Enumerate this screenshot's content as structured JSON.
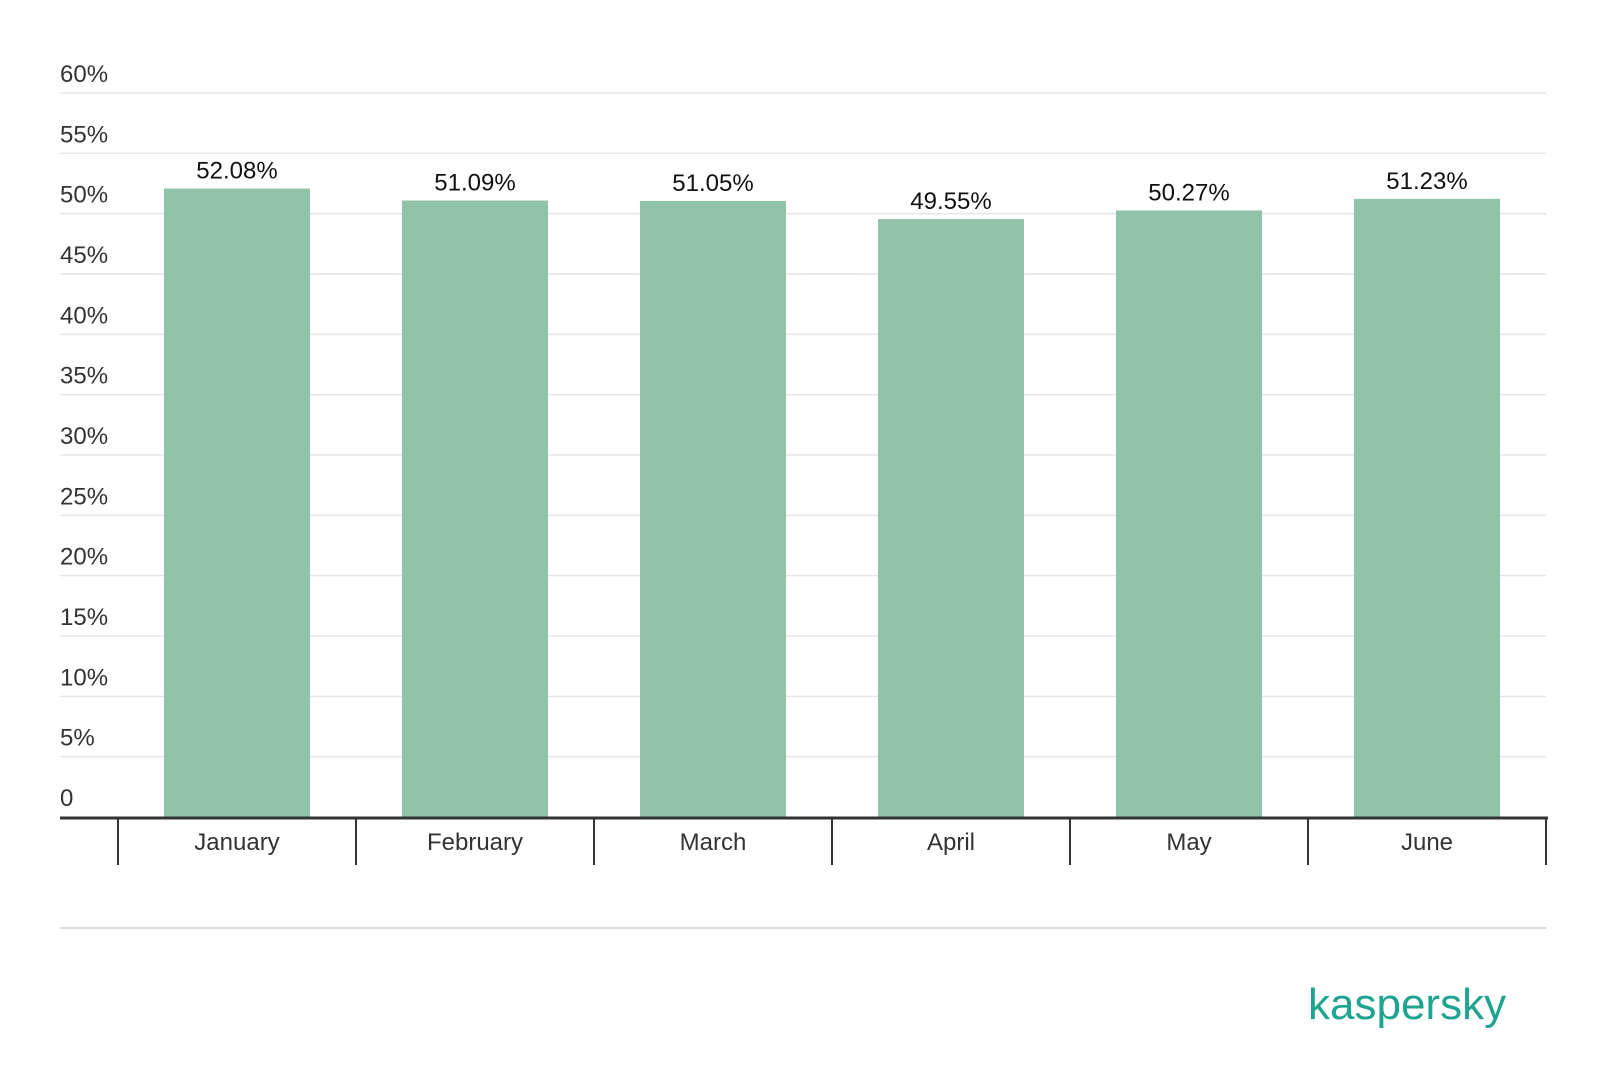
{
  "chart_data": {
    "type": "bar",
    "categories": [
      "January",
      "February",
      "March",
      "April",
      "May",
      "June"
    ],
    "values": [
      52.08,
      51.09,
      51.05,
      49.55,
      50.27,
      51.23
    ],
    "value_labels": [
      "52.08%",
      "51.09%",
      "51.05%",
      "49.55%",
      "50.27%",
      "51.23%"
    ],
    "ylim": [
      0,
      60
    ],
    "yticks": [
      0,
      5,
      10,
      15,
      20,
      25,
      30,
      35,
      40,
      45,
      50,
      55,
      60
    ],
    "ytick_labels": [
      "0",
      "5%",
      "10%",
      "15%",
      "20%",
      "25%",
      "30%",
      "35%",
      "40%",
      "45%",
      "50%",
      "55%",
      "60%"
    ],
    "grid": true,
    "colors": {
      "bar": "#90c3a8",
      "grid": "#e6e6e6",
      "axis": "#333333",
      "brand": "#1fa58f"
    }
  },
  "brand": {
    "name": "kaspersky",
    "color": "#1fa58f"
  }
}
